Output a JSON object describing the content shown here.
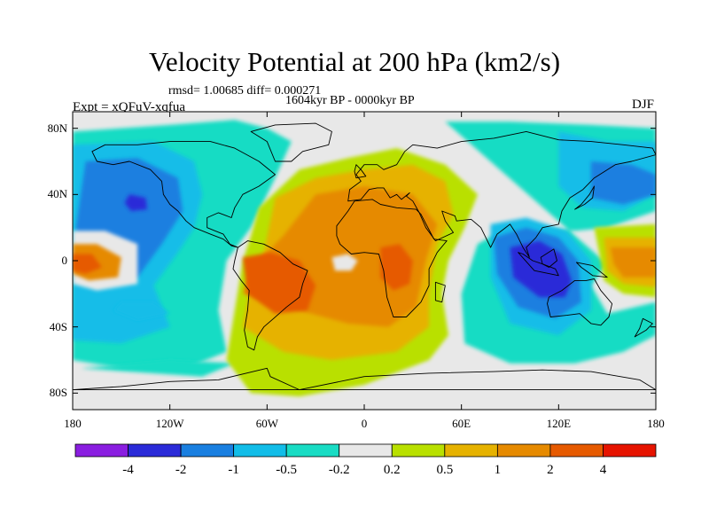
{
  "chart_data": {
    "type": "heatmap",
    "title": "Velocity Potential at 200 hPa (km2/s)",
    "subtitle_stats": "rmsd= 1.00685 diff= 0.000271",
    "subtitle_period": "1604kyr BP - 0000kyr BP",
    "left_label": "Expt = xQFuV-xqfua",
    "right_label": "DJF",
    "x_ticks": [
      "180",
      "120W",
      "60W",
      "0",
      "60E",
      "120E",
      "180"
    ],
    "x_tick_values": [
      -180,
      -120,
      -60,
      0,
      60,
      120,
      180
    ],
    "y_ticks": [
      "80N",
      "40N",
      "0",
      "40S",
      "80S"
    ],
    "y_tick_values": [
      80,
      40,
      0,
      -40,
      -80
    ],
    "xlim": [
      -180,
      180
    ],
    "ylim": [
      -90,
      90
    ],
    "colorbar": {
      "levels": [
        "-4",
        "-2",
        "-1",
        "-0.5",
        "-0.2",
        "0.2",
        "0.5",
        "1",
        "2",
        "4"
      ],
      "colors": [
        "#8a1ee0",
        "#2b2bd8",
        "#1a7fe0",
        "#12bde8",
        "#19dcc4",
        "#e8e8e8",
        "#b9e000",
        "#e6b200",
        "#e68a00",
        "#e65a00",
        "#e61400"
      ]
    },
    "features": [
      {
        "name": "negative center",
        "lon": -140,
        "lat": 35,
        "level": "-2"
      },
      {
        "name": "negative center",
        "lon": 110,
        "lat": -5,
        "level": "-4"
      },
      {
        "name": "positive center",
        "lon": -50,
        "lat": -15,
        "level": "4"
      },
      {
        "name": "positive center",
        "lon": 20,
        "lat": -5,
        "level": "2"
      },
      {
        "name": "positive center",
        "lon": 165,
        "lat": -5,
        "level": "2"
      }
    ]
  },
  "colors": {
    "ocean_neutral": "#e8e8e8",
    "coastline": "#000000"
  }
}
